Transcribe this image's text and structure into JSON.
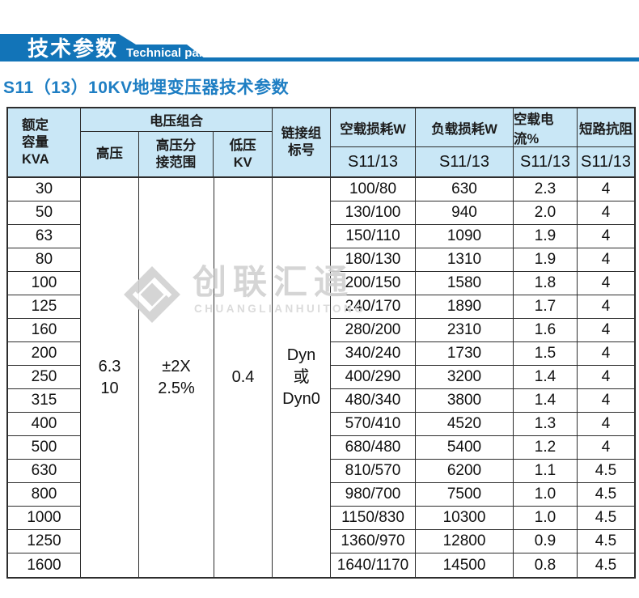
{
  "colors": {
    "brand": "#1274b8",
    "header_bg": "#c9e7f6",
    "border": "#2d2d2d",
    "title_text": "#1e7ec3",
    "watermark": "#d2d2d2"
  },
  "banner": {
    "title": "技术参数",
    "subtitle": "Technical parameter"
  },
  "page_title": "S11（13）10KV地埋变压器技术参数",
  "watermark": {
    "cn": "创联汇通",
    "en": "CHUANGLIANHUITONG",
    "logo_icon": "diamond-interlock-logo"
  },
  "table": {
    "header": {
      "col_kva": "额定\n容量\nKVA",
      "voltage_group": "电压组合",
      "col_hv": "高压",
      "col_tap": "高压分\n接范围",
      "col_lv": "低压\nKV",
      "col_conn": "链接组\n标号",
      "col_noload": "空载损耗W",
      "col_load": "负载损耗W",
      "col_current": "空载电流%",
      "col_impedance": "短路抗阻",
      "sub_model": "S11/13"
    },
    "merged": {
      "hv": "6.3\n10",
      "tap": "±2X\n2.5%",
      "lv": "0.4",
      "conn": "Dyn\n或\nDyn0"
    },
    "rows": [
      {
        "kva": "30",
        "noload": "100/80",
        "load": "630",
        "current": "2.3",
        "impedance": "4"
      },
      {
        "kva": "50",
        "noload": "130/100",
        "load": "940",
        "current": "2.0",
        "impedance": "4"
      },
      {
        "kva": "63",
        "noload": "150/110",
        "load": "1090",
        "current": "1.9",
        "impedance": "4"
      },
      {
        "kva": "80",
        "noload": "180/130",
        "load": "1310",
        "current": "1.9",
        "impedance": "4"
      },
      {
        "kva": "100",
        "noload": "200/150",
        "load": "1580",
        "current": "1.8",
        "impedance": "4"
      },
      {
        "kva": "125",
        "noload": "240/170",
        "load": "1890",
        "current": "1.7",
        "impedance": "4"
      },
      {
        "kva": "160",
        "noload": "280/200",
        "load": "2310",
        "current": "1.6",
        "impedance": "4"
      },
      {
        "kva": "200",
        "noload": "340/240",
        "load": "1730",
        "current": "1.5",
        "impedance": "4"
      },
      {
        "kva": "250",
        "noload": "400/290",
        "load": "3200",
        "current": "1.4",
        "impedance": "4"
      },
      {
        "kva": "315",
        "noload": "480/340",
        "load": "3800",
        "current": "1.4",
        "impedance": "4"
      },
      {
        "kva": "400",
        "noload": "570/410",
        "load": "4520",
        "current": "1.3",
        "impedance": "4"
      },
      {
        "kva": "500",
        "noload": "680/480",
        "load": "5400",
        "current": "1.2",
        "impedance": "4"
      },
      {
        "kva": "630",
        "noload": "810/570",
        "load": "6200",
        "current": "1.1",
        "impedance": "4.5"
      },
      {
        "kva": "800",
        "noload": "980/700",
        "load": "7500",
        "current": "1.0",
        "impedance": "4.5"
      },
      {
        "kva": "1000",
        "noload": "1150/830",
        "load": "10300",
        "current": "1.0",
        "impedance": "4.5"
      },
      {
        "kva": "1250",
        "noload": "1360/970",
        "load": "12800",
        "current": "0.9",
        "impedance": "4.5"
      },
      {
        "kva": "1600",
        "noload": "1640/1170",
        "load": "14500",
        "current": "0.8",
        "impedance": "4.5"
      }
    ]
  }
}
